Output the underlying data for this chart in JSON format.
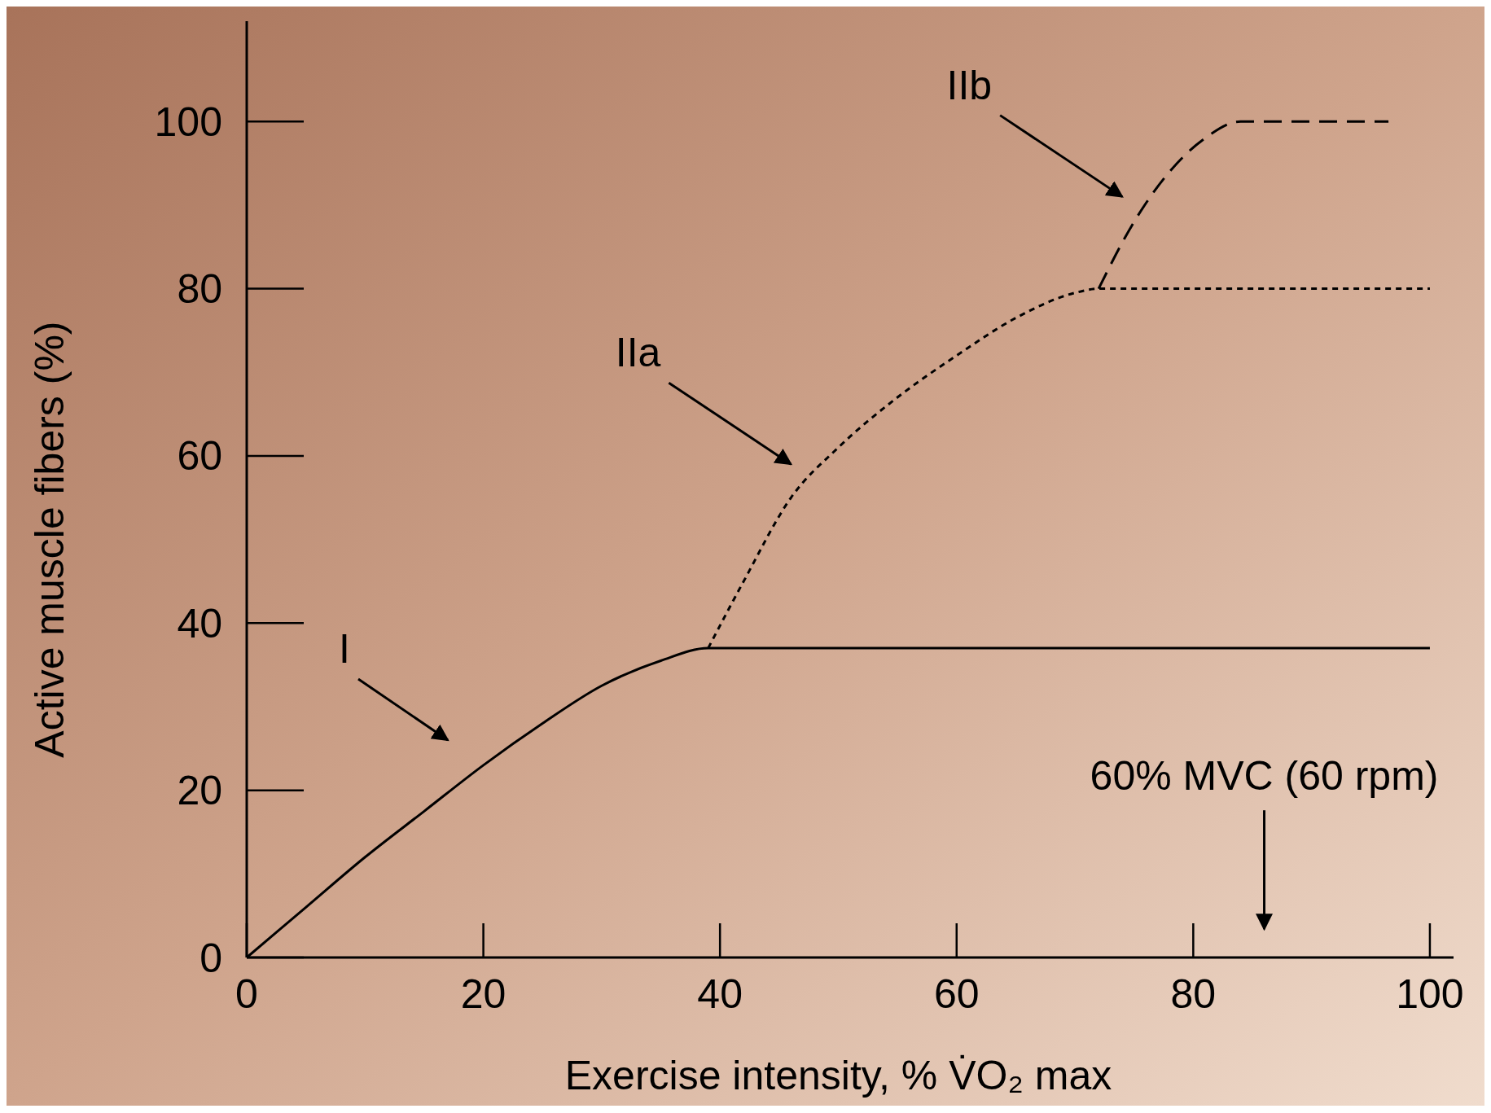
{
  "chart_data": {
    "type": "line",
    "xlabel": "Exercise intensity, % V̇O₂ max",
    "ylabel": "Active muscle fibers (%)",
    "xlim": [
      0,
      102
    ],
    "ylim": [
      0,
      112
    ],
    "xticks": [
      0,
      20,
      40,
      60,
      80,
      100
    ],
    "yticks": [
      0,
      20,
      40,
      60,
      80,
      100
    ],
    "grid": false,
    "series": [
      {
        "color": "#000000",
        "line_style": "solid",
        "x": [
          0,
          5,
          10,
          15,
          20,
          25,
          30,
          35,
          39,
          100
        ],
        "values": [
          0,
          6,
          12,
          17.5,
          23,
          28,
          32.5,
          35.5,
          37,
          37
        ]
      },
      {
        "color": "#000000",
        "line_style": "dashed",
        "x": [
          39,
          42,
          46,
          50,
          55,
          60,
          65,
          70,
          72,
          100
        ],
        "values": [
          37,
          45,
          55,
          61,
          67,
          72,
          76.5,
          79.5,
          80,
          80
        ]
      },
      {
        "color": "#000000",
        "line_style": "longdash",
        "x": [
          72,
          75,
          78,
          81,
          84,
          96.5
        ],
        "values": [
          80,
          88,
          94,
          98,
          100,
          100
        ]
      }
    ],
    "annotations": [
      "I",
      "IIa",
      "IIb",
      "60% MVC (60 rpm)"
    ]
  }
}
